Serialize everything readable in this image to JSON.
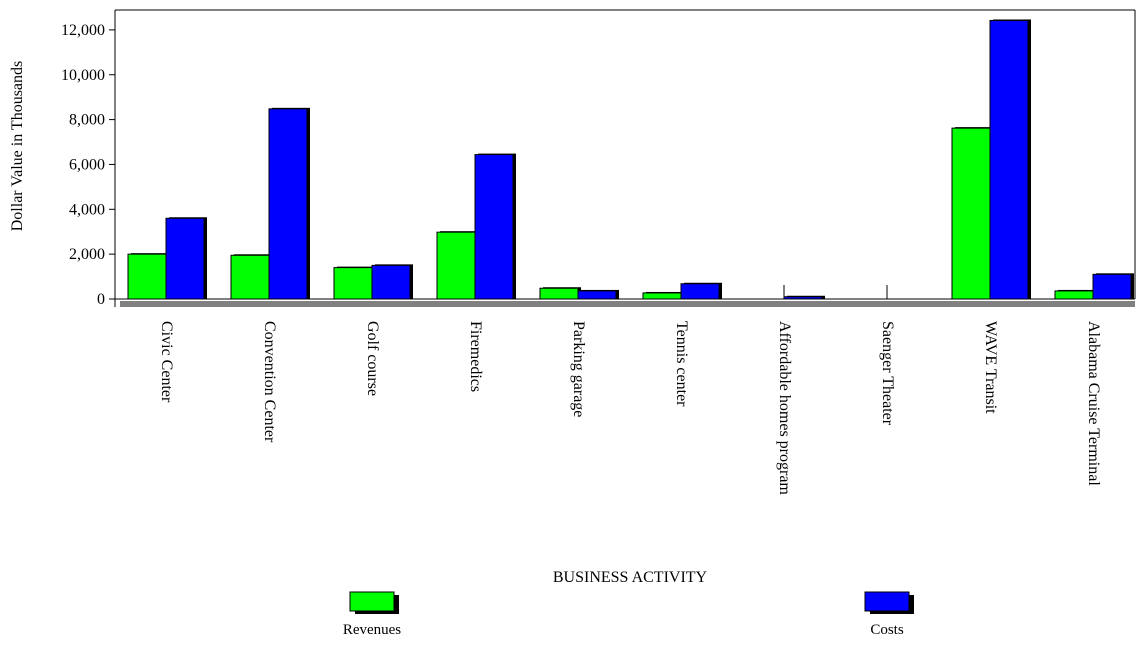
{
  "chart_data": {
    "type": "bar",
    "title": "",
    "xlabel": "BUSINESS ACTIVITY",
    "ylabel": "Dollar Value in Thousands",
    "ylim": [
      0,
      12800
    ],
    "yticks": [
      0,
      2000,
      4000,
      6000,
      8000,
      10000,
      12000
    ],
    "ytick_labels": [
      "0",
      "2,000",
      "4,000",
      "6,000",
      "8,000",
      "10,000",
      "12,000"
    ],
    "categories": [
      "Civic Center",
      "Convention Center",
      "Golf course",
      "Firemedics",
      "Parking garage",
      "Tennis center",
      "Affordable homes program",
      "Saenger Theater",
      "WAVE Transit",
      "Alabama Cruise Terminal"
    ],
    "series": [
      {
        "name": "Revenues",
        "color": "#00ff00",
        "values": [
          2000,
          1950,
          1400,
          2980,
          480,
          270,
          0,
          0,
          7620,
          360
        ]
      },
      {
        "name": "Costs",
        "color": "#0000ff",
        "values": [
          3600,
          8480,
          1500,
          6440,
          360,
          680,
          100,
          0,
          12420,
          1100
        ]
      }
    ],
    "grid": false,
    "legend_position": "bottom",
    "bar_style": "3d-shadow"
  }
}
